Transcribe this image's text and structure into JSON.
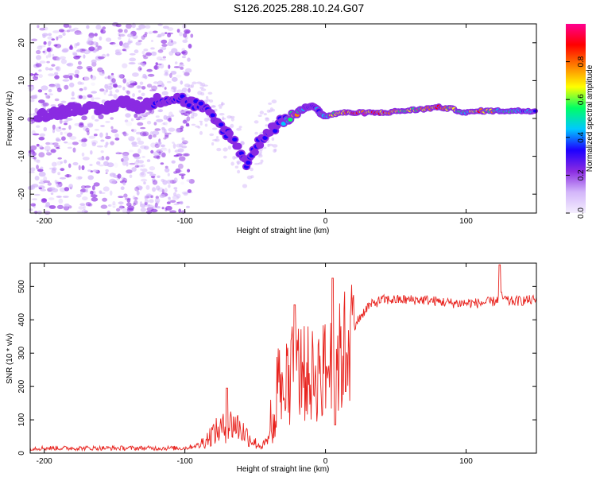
{
  "chart_data": [
    {
      "type": "heatmap",
      "title": "S126.2025.288.10.24.G07",
      "xlabel": "Height of straight line (km)",
      "ylabel": "Frequency (Hz)",
      "xlim": [
        -210,
        150
      ],
      "ylim": [
        -25,
        25
      ],
      "xticks": [
        -200,
        -100,
        0,
        100
      ],
      "yticks": [
        -20,
        -10,
        0,
        10,
        20
      ],
      "colorbar": {
        "label": "Normalized spectral amplitude",
        "range": [
          0,
          1
        ],
        "ticks": [
          "0.0",
          "0.2",
          "0.4",
          "0.6",
          "0.8"
        ],
        "colors": [
          "#f4eefe",
          "#d3b6fa",
          "#8a2be2",
          "#1d00ff",
          "#00c8ff",
          "#00ff64",
          "#ffff00",
          "#ff7f00",
          "#ff0000",
          "#ff0090"
        ]
      },
      "ridge": {
        "x": [
          -205,
          -190,
          -175,
          -160,
          -145,
          -130,
          -118,
          -105,
          -95,
          -88,
          -80,
          -72,
          -65,
          -60,
          -56,
          -50,
          -45,
          -40,
          -35,
          -28,
          -22,
          -16,
          -10,
          0,
          10,
          25,
          40,
          55,
          70,
          80,
          90,
          100,
          110,
          125,
          140,
          150
        ],
        "freq": [
          1,
          1.5,
          3,
          2,
          4.5,
          3,
          5,
          5.5,
          4,
          3,
          0,
          -3,
          -6,
          -9,
          -12,
          -8,
          -5,
          -3,
          -2,
          0,
          1,
          2.5,
          3.5,
          0.5,
          1.5,
          1.5,
          1.5,
          2,
          2.5,
          3,
          2.5,
          1.5,
          2,
          2,
          2,
          2
        ],
        "amplitude": [
          0.25,
          0.25,
          0.25,
          0.25,
          0.25,
          0.25,
          0.3,
          0.3,
          0.3,
          0.3,
          0.35,
          0.3,
          0.3,
          0.3,
          0.3,
          0.3,
          0.3,
          0.3,
          0.3,
          0.4,
          0.8,
          0.45,
          0.4,
          0.55,
          0.7,
          0.9,
          0.85,
          0.6,
          0.75,
          0.85,
          0.7,
          0.5,
          0.85,
          0.55,
          0.45,
          0.45
        ]
      }
    },
    {
      "type": "line",
      "xlabel": "Height of straight line (km)",
      "ylabel": "SNR (10 * v/v)",
      "xlim": [
        -210,
        150
      ],
      "ylim": [
        0,
        570
      ],
      "xticks": [
        -200,
        -100,
        0,
        100
      ],
      "yticks": [
        0,
        100,
        200,
        300,
        400,
        500
      ],
      "color": "#e8231e",
      "series": [
        {
          "name": "SNR",
          "x": [
            -210,
            -180,
            -150,
            -120,
            -100,
            -90,
            -85,
            -80,
            -75,
            -70,
            -65,
            -60,
            -55,
            -50,
            -45,
            -40,
            -35,
            -30,
            -25,
            -20,
            -15,
            -10,
            -5,
            0,
            5,
            10,
            15,
            20,
            25,
            30,
            40,
            50,
            70,
            90,
            110,
            120,
            125,
            130,
            150
          ],
          "y": [
            15,
            15,
            15,
            15,
            15,
            25,
            40,
            60,
            70,
            80,
            90,
            70,
            50,
            30,
            20,
            40,
            100,
            180,
            220,
            250,
            240,
            230,
            240,
            250,
            260,
            280,
            320,
            380,
            410,
            440,
            460,
            460,
            460,
            450,
            450,
            455,
            470,
            455,
            460
          ],
          "peaks": [
            {
              "x": -70,
              "y": 195
            },
            {
              "x": -22,
              "y": 445
            },
            {
              "x": 5,
              "y": 525
            },
            {
              "x": 124,
              "y": 565
            },
            {
              "x": 7,
              "y": 85
            }
          ]
        }
      ]
    }
  ]
}
